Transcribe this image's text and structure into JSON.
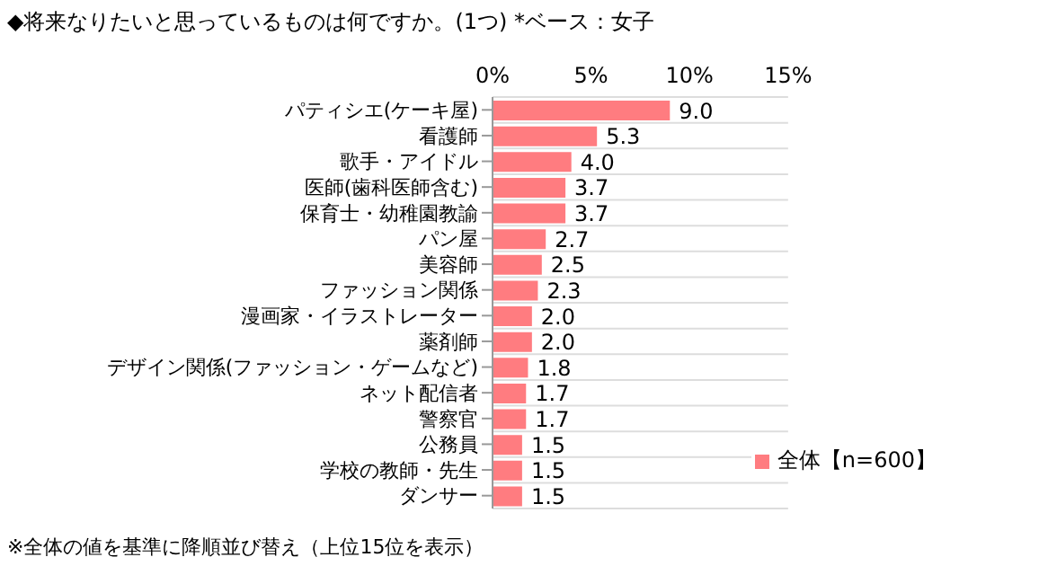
{
  "chart_data": {
    "type": "bar",
    "orientation": "horizontal",
    "title": "◆将来なりたいと思っているものは何ですか。(1つ) *ベース：女子",
    "categories": [
      "パティシエ(ケーキ屋)",
      "看護師",
      "歌手・アイドル",
      "医師(歯科医師含む)",
      "保育士・幼稚園教諭",
      "パン屋",
      "美容師",
      "ファッション関係",
      "漫画家・イラストレーター",
      "薬剤師",
      "デザイン関係(ファッション・ゲームなど)",
      "ネット配信者",
      "警察官",
      "公務員",
      "学校の教師・先生",
      "ダンサー"
    ],
    "series": [
      {
        "name": "全体【n=600】",
        "color": "#ff7c80",
        "values": [
          9.0,
          5.3,
          4.0,
          3.7,
          3.7,
          2.7,
          2.5,
          2.3,
          2.0,
          2.0,
          1.8,
          1.7,
          1.7,
          1.5,
          1.5,
          1.5
        ],
        "value_labels": [
          "9.0",
          "5.3",
          "4.0",
          "3.7",
          "3.7",
          "2.7",
          "2.5",
          "2.3",
          "2.0",
          "2.0",
          "1.8",
          "1.7",
          "1.7",
          "1.5",
          "1.5",
          "1.5"
        ]
      }
    ],
    "xlim": [
      0,
      15
    ],
    "xticks": [
      {
        "value": 0,
        "label": "0%"
      },
      {
        "value": 5,
        "label": "5%"
      },
      {
        "value": 10,
        "label": "10%"
      },
      {
        "value": 15,
        "label": "15%"
      }
    ],
    "grid": "y",
    "legend": "bottom right",
    "annotations": [
      "※全体の値を基準に降順並び替え（上位15位を表示）"
    ]
  }
}
